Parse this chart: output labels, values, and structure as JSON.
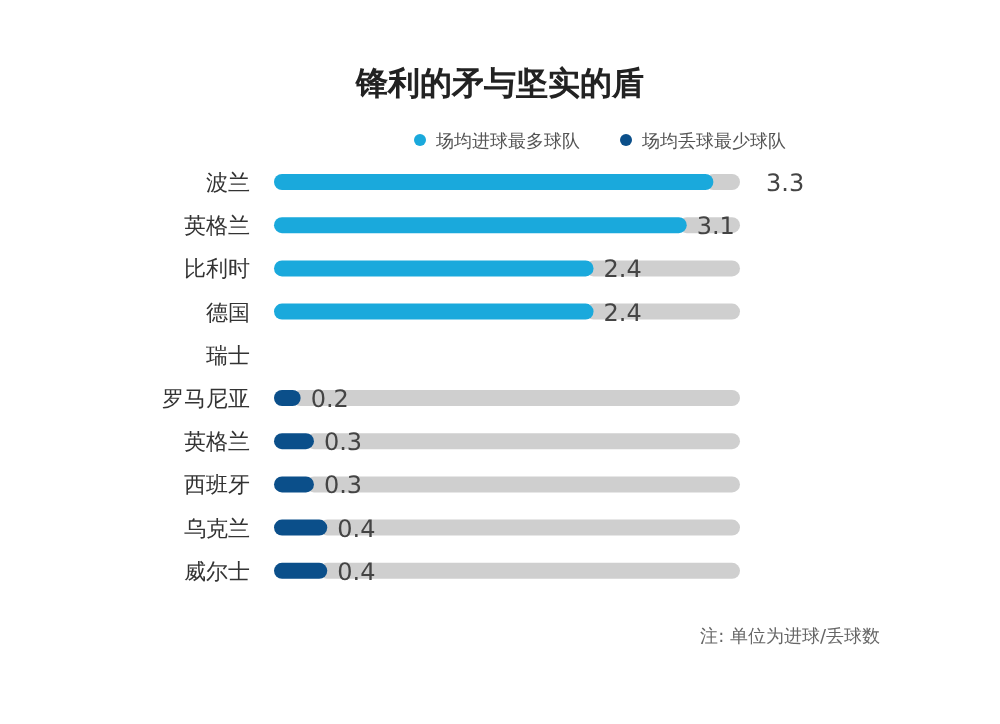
{
  "chart_data": {
    "type": "bar",
    "orientation": "horizontal",
    "title": "锋利的矛与坚实的盾",
    "categories": [
      "波兰",
      "英格兰",
      "比利时",
      "德国",
      "瑞士",
      "罗马尼亚",
      "英格兰",
      "西班牙",
      "乌克兰",
      "威尔士"
    ],
    "series": [
      {
        "name": "场均进球最多球队",
        "color": "#1aa9dc",
        "values": [
          3.3,
          3.1,
          2.4,
          2.4,
          null,
          null,
          null,
          null,
          null,
          null
        ]
      },
      {
        "name": "场均丢球最少球队",
        "color": "#0b4f8a",
        "values": [
          null,
          null,
          null,
          null,
          null,
          0.2,
          0.3,
          0.3,
          0.4,
          0.4
        ]
      }
    ],
    "xlim": [
      0,
      3.5
    ],
    "tick_labels": "y",
    "data_labels": true,
    "legend": "top",
    "grid": false,
    "annotations": [
      "注: 单位为进球/丢球数"
    ]
  }
}
